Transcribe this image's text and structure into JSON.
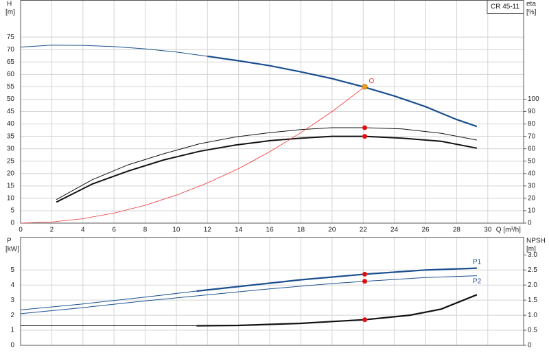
{
  "chart_data": [
    {
      "type": "line",
      "title": "CR 45-11",
      "ylabel": "H",
      "yunit": "[m]",
      "y2label": "eta",
      "y2unit": "[%]",
      "xlabel": "Q [m³/h]",
      "xlim": [
        0,
        32.3
      ],
      "ylim": [
        0,
        90
      ],
      "y2lim": [
        0,
        180
      ],
      "xticks": [
        0,
        2,
        4,
        6,
        8,
        10,
        12,
        14,
        16,
        18,
        20,
        22,
        24,
        26,
        28,
        30
      ],
      "yticks": [
        0,
        5,
        10,
        15,
        20,
        25,
        30,
        35,
        40,
        45,
        50,
        55,
        60,
        65,
        70,
        75
      ],
      "y2ticks": [
        0,
        10,
        20,
        30,
        40,
        50,
        60,
        70,
        80,
        90,
        100
      ],
      "grid": true,
      "series": [
        {
          "color": "#1a4f8f",
          "thick_from": 11.3,
          "x": [
            0,
            2,
            4,
            6,
            8,
            10,
            12,
            14,
            16,
            18,
            20,
            22,
            24,
            26,
            28,
            29.3
          ],
          "values": [
            71,
            71.8,
            71.7,
            71.2,
            70.3,
            69,
            67.3,
            65.5,
            63.5,
            61,
            58.3,
            55,
            51.3,
            47,
            41.8,
            39
          ]
        },
        {
          "color": "#111111",
          "axis": "y2",
          "width": 1,
          "x": [
            2.3,
            4.6,
            6.9,
            9.2,
            11.5,
            13.8,
            16,
            18,
            20,
            22.1,
            24.5,
            27,
            29.3
          ],
          "values": [
            19,
            35,
            47,
            56,
            64,
            69.5,
            73,
            75.5,
            77,
            77,
            76,
            72.5,
            67
          ]
        },
        {
          "color": "#111111",
          "axis": "y2",
          "width": 2,
          "x": [
            2.3,
            4.6,
            6.9,
            9.2,
            11.5,
            13.8,
            16,
            18,
            20,
            22.1,
            24.5,
            27,
            29.3
          ],
          "values": [
            17,
            31.5,
            42,
            51,
            58,
            63,
            66.5,
            68.5,
            70,
            70,
            68.5,
            66,
            60.5
          ]
        },
        {
          "color": "#f03030",
          "width": 0.8,
          "x": [
            0,
            2,
            4,
            6,
            8,
            10,
            12,
            14,
            16,
            18,
            20,
            22.1
          ],
          "values": [
            0,
            0.45,
            1.8,
            4.05,
            7.2,
            11.3,
            16.2,
            22,
            28.8,
            36.5,
            45,
            55
          ]
        },
        {
          "name": "O",
          "color": "#f0a020",
          "style": "point",
          "x": [
            22.1
          ],
          "values": [
            55
          ]
        },
        {
          "color": "#e01010",
          "style": "point",
          "axis": "y2",
          "x": [
            22.1,
            22.1
          ],
          "values": [
            77,
            70
          ]
        }
      ]
    },
    {
      "type": "line",
      "ylabel": "P",
      "yunit": "[kW]",
      "y2label": "NPSH",
      "y2unit": "[m]",
      "xlim": [
        0,
        32.3
      ],
      "ylim": [
        0,
        7.2
      ],
      "y2lim": [
        0,
        3.6
      ],
      "yticks": [
        0,
        1,
        2,
        3,
        4,
        5
      ],
      "y2ticks": [
        0,
        0.5,
        {
          "value": 1,
          "label": "1.0"
        },
        1.5,
        {
          "value": 2,
          "label": "2.0"
        },
        2.5,
        {
          "value": 3,
          "label": "3.0"
        }
      ],
      "grid": true,
      "series": [
        {
          "name": "P1",
          "color": "#1a4f8f",
          "thick_from": 11.3,
          "x": [
            0,
            4,
            8,
            11.3,
            14,
            18,
            22.1,
            26,
            29.3
          ],
          "values": [
            2.35,
            2.75,
            3.2,
            3.6,
            3.9,
            4.35,
            4.72,
            5,
            5.12
          ]
        },
        {
          "name": "P2",
          "color": "#1a4f8f",
          "width": 1,
          "x": [
            0,
            4,
            8,
            12,
            16,
            20,
            22.1,
            26,
            29.3
          ],
          "values": [
            2.1,
            2.5,
            2.95,
            3.35,
            3.75,
            4.1,
            4.25,
            4.5,
            4.62
          ]
        },
        {
          "color": "#111111",
          "axis": "y2",
          "thick_from": 11.3,
          "x": [
            0,
            11.3,
            14,
            18,
            20,
            22.1,
            25,
            27,
            29.3
          ],
          "values": [
            0.65,
            0.65,
            0.66,
            0.73,
            0.79,
            0.85,
            1,
            1.2,
            1.68
          ]
        },
        {
          "color": "#e01010",
          "style": "point",
          "x": [
            22.1,
            22.1
          ],
          "values": [
            4.72,
            4.25
          ]
        },
        {
          "color": "#e01010",
          "style": "point",
          "axis": "y2",
          "x": [
            22.1
          ],
          "values": [
            0.85
          ]
        }
      ]
    }
  ]
}
